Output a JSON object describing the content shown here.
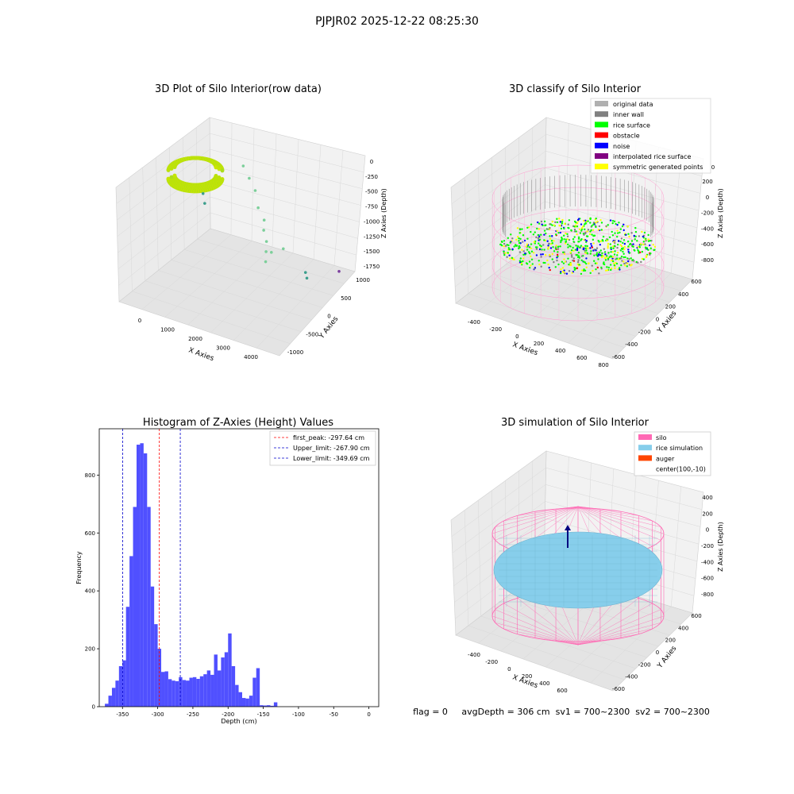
{
  "suptitle": "PJPJR02 2025-12-22 08:25:30",
  "footer": "flag = 0     avgDepth = 306 cm  sv1 = 700~2300  sv2 = 700~2300",
  "colors": {
    "hist_bar": "#5050ff",
    "first_peak": "#ff0000",
    "limits": "#0000cc",
    "silo": "#ff69b4",
    "rice_simulation": "#87ceeb",
    "auger": "#ff4500",
    "raw_yellow": "#c8e600",
    "raw_green": "#7ccf9a"
  },
  "chart_data": [
    {
      "type": "scatter",
      "projection": "3d",
      "title": "3D Plot of Silo Interior(row data)",
      "xlabel": "X Axies",
      "ylabel": "Y Axies",
      "zlabel": "Z Axies (Depth)",
      "xticks": [
        "0",
        "1000",
        "2000",
        "3000",
        "4000"
      ],
      "yticks": [
        "-1000",
        "-500",
        "0",
        "500",
        "1000"
      ],
      "zticks": [
        "0",
        "-250",
        "-500",
        "-750",
        "-1000",
        "-1250",
        "-1500",
        "-1750"
      ],
      "xlim": [
        -500,
        4500
      ],
      "ylim": [
        -1200,
        1200
      ],
      "zlim": [
        -1800,
        100
      ],
      "points": [
        {
          "x": 2300,
          "y": 300,
          "z": -700
        },
        {
          "x": 2400,
          "y": 200,
          "z": -800
        },
        {
          "x": 2600,
          "y": 100,
          "z": -900
        },
        {
          "x": 2700,
          "y": 0,
          "z": -1000
        },
        {
          "x": 2000,
          "y": 400,
          "z": -600
        },
        {
          "x": 1800,
          "y": 500,
          "z": -400
        },
        {
          "x": 2800,
          "y": -100,
          "z": -1100
        },
        {
          "x": 2500,
          "y": 300,
          "z": -1200
        },
        {
          "x": 3000,
          "y": 200,
          "z": -1000
        },
        {
          "x": 1500,
          "y": 600,
          "z": -300
        },
        {
          "x": 1200,
          "y": 700,
          "z": -200
        },
        {
          "x": 3800,
          "y": 100,
          "z": -1200
        },
        {
          "x": 3900,
          "y": 50,
          "z": -1250
        },
        {
          "x": 4000,
          "y": 800,
          "z": -1500
        },
        {
          "x": 200,
          "y": 500,
          "z": -900
        },
        {
          "x": 400,
          "y": 300,
          "z": -600
        }
      ]
    },
    {
      "type": "scatter",
      "projection": "3d",
      "title": "3D classify of Silo Interior",
      "xlabel": "X Axies",
      "ylabel": "Y Axies",
      "zlabel": "Z Axies (Depth)",
      "xticks": [
        "-400",
        "-200",
        "0",
        "200",
        "400",
        "600",
        "800"
      ],
      "yticks": [
        "-600",
        "-400",
        "-200",
        "0",
        "200",
        "400",
        "600"
      ],
      "zticks": [
        "200",
        "0",
        "-200",
        "-400",
        "-600",
        "-800"
      ],
      "zticks_top": [
        "400",
        "200",
        "0",
        "-200",
        "-400",
        "-600",
        "-800"
      ],
      "xlim": [
        -500,
        850
      ],
      "ylim": [
        -700,
        700
      ],
      "zlim": [
        -900,
        300
      ],
      "legend": [
        {
          "label": "original data",
          "color": "#b0b0b0"
        },
        {
          "label": "inner wall",
          "color": "#808080"
        },
        {
          "label": "rice surface",
          "color": "#00ff00"
        },
        {
          "label": "obstacle",
          "color": "#ff0000"
        },
        {
          "label": "noise",
          "color": "#0000ff"
        },
        {
          "label": "interpolated rice surface",
          "color": "#800080"
        },
        {
          "label": "symmetric generated points",
          "color": "#ffff00"
        }
      ],
      "legend_placement": "top-right",
      "tick_cut": "0"
    },
    {
      "type": "bar",
      "title": "Histogram of Z-Axies (Height) Values",
      "xlabel": "Depth (cm)",
      "ylabel": "Frequency",
      "xlim": [
        -383,
        14
      ],
      "ylim": [
        0,
        960
      ],
      "xticks": [
        -350,
        -300,
        -250,
        -200,
        -150,
        -100,
        -50,
        0
      ],
      "yticks": [
        0,
        200,
        400,
        600,
        800
      ],
      "bin_start": -375,
      "bin_width": 5,
      "values": [
        10,
        38,
        65,
        90,
        140,
        160,
        345,
        520,
        690,
        905,
        910,
        875,
        690,
        415,
        285,
        200,
        120,
        122,
        95,
        90,
        88,
        102,
        92,
        90,
        100,
        102,
        96,
        105,
        112,
        125,
        110,
        180,
        125,
        170,
        188,
        253,
        140,
        75,
        50,
        30,
        28,
        38,
        100,
        133,
        5,
        4,
        5,
        3,
        15
      ],
      "lines": [
        {
          "label": "first_peak: -297.64 cm",
          "x": -297.64,
          "color": "#ff0000"
        },
        {
          "label": "Upper_limit: -267.90 cm",
          "x": -267.9,
          "color": "#0000cc"
        },
        {
          "label": "Lower_limit: -349.69 cm",
          "x": -349.69,
          "color": "#0000cc"
        }
      ],
      "legend_placement": "top-right"
    },
    {
      "type": "surface",
      "projection": "3d",
      "title": "3D simulation of Silo Interior",
      "xlabel": "X Axies",
      "ylabel": "Y Axies",
      "zlabel": "Z Axies (Depth)",
      "xticks": [
        "-400",
        "-200",
        "0",
        "200",
        "400",
        "600"
      ],
      "yticks": [
        "-600",
        "-400",
        "-200",
        "0",
        "200",
        "400",
        "600"
      ],
      "zticks": [
        "400",
        "200",
        "0",
        "-200",
        "-400",
        "-600",
        "-800"
      ],
      "legend": [
        {
          "label": "silo",
          "color": "#ff69b4"
        },
        {
          "label": "rice simulation",
          "color": "#87ceeb"
        },
        {
          "label": "auger",
          "color": "#ff4500"
        },
        {
          "label": "center(100,-10)",
          "color": ""
        }
      ],
      "legend_placement": "top-right"
    }
  ]
}
